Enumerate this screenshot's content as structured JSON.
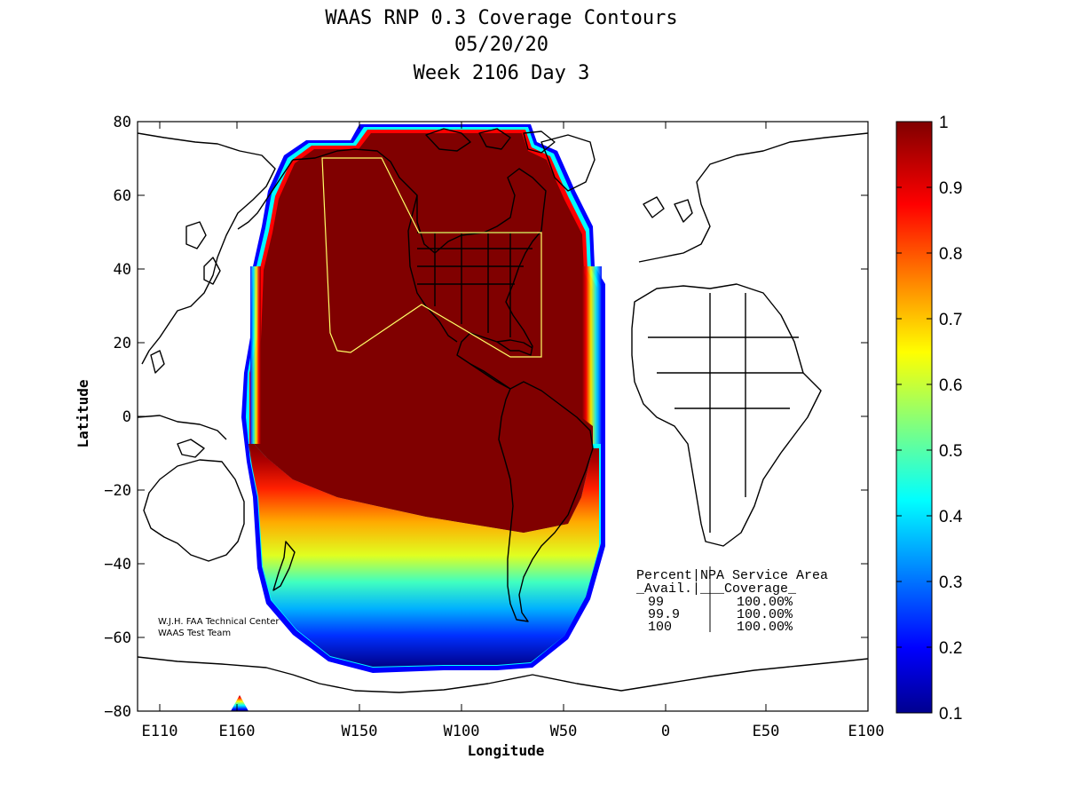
{
  "title": {
    "line1": "WAAS RNP 0.3 Coverage Contours",
    "line2": "05/20/20",
    "line3": "Week 2106 Day 3"
  },
  "axes": {
    "xlabel": "Longitude",
    "ylabel": "Latitude",
    "x_ticks": [
      "E110",
      "E160",
      "W150",
      "W100",
      "W50",
      "0",
      "E50",
      "E100"
    ],
    "y_ticks": [
      "80",
      "60",
      "40",
      "20",
      "0",
      "−20",
      "−40",
      "−60",
      "−80"
    ]
  },
  "colorbar": {
    "ticks": [
      "1",
      "0.9",
      "0.8",
      "0.7",
      "0.6",
      "0.5",
      "0.4",
      "0.3",
      "0.2",
      "0.1"
    ],
    "range": [
      0.1,
      1.0
    ],
    "colormap": "jet"
  },
  "summary_table": {
    "header1": "Percent|NPA Service Area",
    "header2": "_Avail.|___Coverage_",
    "rows": [
      {
        "avail": "99",
        "coverage": "100.00%"
      },
      {
        "avail": "99.9",
        "coverage": "100.00%"
      },
      {
        "avail": "100",
        "coverage": "100.00%"
      }
    ]
  },
  "credit": {
    "line1": "W.J.H. FAA Technical Center",
    "line2": "WAAS Test Team"
  },
  "colors": {
    "coverage_max": "#800000",
    "service_area_outline": "#ffff66",
    "coastline": "#000000"
  }
}
